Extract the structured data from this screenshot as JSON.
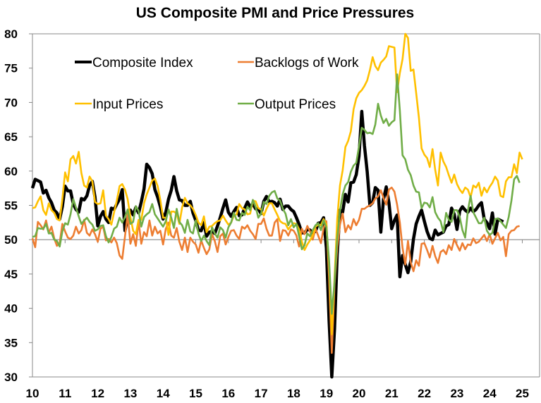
{
  "chart_data": {
    "type": "line",
    "title": "US Composite PMI and Price Pressures",
    "xlabel": "",
    "ylabel": "",
    "ylim": [
      30,
      80
    ],
    "yticks": [
      30,
      35,
      40,
      45,
      50,
      55,
      60,
      65,
      70,
      75,
      80
    ],
    "xtick_labels": [
      "10",
      "11",
      "12",
      "13",
      "14",
      "15",
      "16",
      "17",
      "18",
      "19",
      "20",
      "21",
      "22",
      "23",
      "24",
      "25"
    ],
    "x_start": "2010-01",
    "frequency": "monthly",
    "reference_line": 50,
    "grid": false,
    "legend": "top-left, inside plot, two columns",
    "series": [
      {
        "name": "Composite Index",
        "color": "#000000",
        "values": [
          57.5,
          58.8,
          58.6,
          58.4,
          56.8,
          57.2,
          56.1,
          55.4,
          54.3,
          53.9,
          53.0,
          54.8,
          57.8,
          57.1,
          57.1,
          55.2,
          54.4,
          54.0,
          56.0,
          55.8,
          56.4,
          57.9,
          58.5,
          56.2,
          52.0,
          53.4,
          54.1,
          53.0,
          52.5,
          54.6,
          54.4,
          55.2,
          55.9,
          57.3,
          51.3,
          53.2,
          54.3,
          53.6,
          54.7,
          53.9,
          55.5,
          57.4,
          61.0,
          60.5,
          59.6,
          57.3,
          56.2,
          54.8,
          53.0,
          54.0,
          55.9,
          57.2,
          59.2,
          57.1,
          55.8,
          55.7,
          55.0,
          55.0,
          55.6,
          53.9,
          52.8,
          51.4,
          51.3,
          52.5,
          50.5,
          51.1,
          51.2,
          50.9,
          52.0,
          53.2,
          54.6,
          55.8,
          54.0,
          53.4,
          54.1,
          54.7,
          53.5,
          53.6,
          54.6,
          55.5,
          54.8,
          55.2,
          54.5,
          54.5,
          53.8,
          55.6,
          56.3,
          55.5,
          55.6,
          55.4,
          54.9,
          55.9,
          54.4,
          54.9,
          54.9,
          54.4,
          54.1,
          53.2,
          52.2,
          51.0,
          51.0,
          51.5,
          51.4,
          51.0,
          51.2,
          52.4,
          52.5,
          53.2,
          48.8,
          38.1,
          27.0,
          37.0,
          47.9,
          54.3,
          54.0,
          56.6,
          55.5,
          58.3,
          58.4,
          59.5,
          62.2,
          68.7,
          63.7,
          59.9,
          55.0,
          55.4,
          57.6,
          57.2,
          51.1,
          55.9,
          57.7,
          55.4,
          51.6,
          52.8,
          53.6,
          44.6,
          47.7,
          46.4,
          45.2,
          46.8,
          50.1,
          52.3,
          53.4,
          54.3,
          52.7,
          51.2,
          50.2,
          50.0,
          51.4,
          50.7,
          50.9,
          51.1,
          52.0,
          52.2,
          54.6,
          53.7,
          51.5,
          54.2,
          54.8,
          54.3,
          54.0,
          54.6,
          54.1,
          54.4,
          55.0,
          55.4,
          53.0,
          52.5,
          51.6,
          53.9,
          50.8,
          53.0,
          52.8,
          52.6
        ]
      },
      {
        "name": "Backlogs of Work",
        "color": "#ED7D31",
        "values": [
          50.2,
          48.9,
          52.6,
          52.1,
          51.5,
          52.8,
          51.0,
          51.9,
          50.2,
          49.1,
          49.5,
          52.3,
          51.2,
          50.3,
          50.1,
          50.6,
          51.9,
          50.9,
          51.4,
          52.9,
          51.0,
          50.6,
          51.5,
          50.8,
          49.7,
          51.6,
          51.9,
          49.9,
          50.1,
          49.6,
          50.3,
          49.5,
          47.7,
          47.2,
          50.5,
          53.7,
          49.4,
          50.8,
          49.1,
          52.7,
          49.4,
          51.1,
          50.5,
          52.8,
          50.6,
          51.9,
          50.9,
          51.3,
          49.3,
          51.6,
          52.5,
          50.6,
          50.3,
          51.7,
          49.7,
          48.5,
          50.3,
          48.2,
          50.3,
          49.7,
          49.3,
          48.1,
          49.9,
          48.8,
          47.9,
          48.6,
          50.8,
          49.8,
          48.2,
          50.5,
          50.9,
          49.3,
          50.4,
          51.3,
          51.4,
          50.6,
          50.1,
          51.9,
          51.6,
          52.1,
          51.3,
          50.8,
          50.1,
          52.3,
          52.3,
          53.1,
          51.6,
          50.6,
          50.6,
          52.5,
          53.0,
          49.8,
          51.4,
          51.3,
          50.6,
          51.5,
          51.3,
          50.6,
          49.0,
          51.6,
          50.8,
          52.0,
          51.2,
          50.0,
          51.6,
          50.6,
          49.5,
          51.7,
          52.7,
          44.3,
          33.5,
          43.5,
          48.8,
          52.2,
          53.8,
          51.1,
          52.1,
          51.5,
          53.0,
          52.1,
          52.9,
          54.5,
          54.5,
          54.8,
          55.0,
          55.3,
          56.0,
          56.3,
          57.2,
          56.1,
          55.1,
          57.3,
          57.6,
          57.0,
          55.1,
          52.5,
          48.8,
          46.4,
          49.8,
          46.7,
          45.4,
          47.0,
          46.2,
          49.4,
          49.5,
          48.5,
          47.4,
          49.1,
          47.6,
          46.6,
          48.2,
          48.5,
          47.9,
          49.2,
          48.5,
          50.1,
          49.2,
          48.4,
          49.5,
          48.6,
          49.3,
          49.2,
          50.2,
          49.5,
          49.7,
          50.2,
          50.7,
          49.8,
          50.8,
          49.4,
          50.2,
          51.0,
          49.9,
          50.4,
          47.6,
          50.8,
          51.3,
          51.4,
          51.9,
          52.0
        ]
      },
      {
        "name": "Input Prices",
        "color": "#FFC000",
        "values": [
          54.6,
          54.7,
          55.6,
          56.3,
          54.3,
          53.6,
          55.3,
          54.3,
          53.9,
          53.0,
          52.8,
          55.9,
          59.8,
          58.5,
          61.7,
          62.2,
          61.1,
          62.8,
          59.7,
          57.9,
          57.6,
          59.2,
          58.5,
          55.5,
          55.2,
          55.3,
          57.2,
          53.5,
          53.0,
          52.2,
          54.0,
          55.7,
          57.8,
          58.1,
          57.3,
          55.9,
          53.3,
          51.3,
          50.8,
          52.9,
          52.9,
          55.3,
          56.6,
          57.6,
          58.6,
          58.9,
          57.8,
          55.8,
          53.2,
          53.2,
          50.7,
          54.1,
          54.1,
          53.8,
          52.3,
          54.7,
          56.1,
          55.3,
          55.0,
          54.5,
          53.6,
          52.5,
          52.1,
          53.4,
          51.1,
          51.9,
          52.0,
          52.4,
          52.7,
          52.8,
          53.5,
          52.8,
          52.2,
          52.5,
          53.5,
          53.7,
          55.2,
          54.6,
          54.4,
          53.7,
          53.8,
          55.7,
          55.6,
          54.6,
          54.4,
          53.5,
          54.5,
          55.3,
          55.3,
          54.4,
          53.6,
          52.7,
          52.4,
          52.3,
          51.5,
          52.0,
          52.4,
          52.3,
          51.5,
          49.7,
          48.5,
          49.3,
          49.9,
          50.6,
          51.9,
          52.2,
          52.1,
          53.0,
          52.2,
          46.2,
          36.2,
          44.5,
          53.0,
          57.9,
          60.1,
          63.5,
          64.4,
          65.8,
          69.0,
          70.6,
          71.4,
          71.8,
          72.4,
          73.2,
          74.7,
          76.6,
          75.3,
          74.7,
          75.8,
          76.2,
          76.7,
          78.2,
          78.1,
          78.0,
          71.5,
          74.3,
          76.3,
          80.4,
          79.4,
          74.6,
          74.8,
          71.4,
          67.8,
          63.3,
          62.4,
          61.9,
          60.6,
          63.2,
          60.2,
          57.9,
          62.7,
          61.4,
          60.6,
          59.4,
          58.3,
          59.5,
          58.1,
          57.3,
          56.8,
          57.6,
          57.3,
          56.2,
          57.9,
          57.6,
          58.3,
          56.4,
          57.6,
          56.9,
          57.7,
          58.3,
          59.2,
          58.6,
          56.4,
          56.2,
          58.5,
          59.1,
          59.1,
          61.0,
          59.7,
          62.7,
          61.7
        ]
      },
      {
        "name": "Output Prices",
        "color": "#70AD47",
        "values": [
          50.4,
          50.5,
          51.7,
          51.6,
          51.6,
          52.3,
          50.9,
          51.0,
          50.0,
          49.8,
          49.0,
          51.2,
          52.4,
          52.2,
          53.7,
          55.9,
          54.7,
          53.4,
          52.3,
          52.8,
          53.2,
          52.6,
          52.2,
          51.3,
          51.5,
          52.0,
          52.1,
          50.5,
          49.6,
          50.4,
          51.6,
          51.9,
          53.2,
          52.5,
          53.3,
          54.4,
          52.3,
          52.6,
          54.9,
          54.2,
          51.9,
          53.3,
          53.7,
          54.0,
          55.2,
          53.7,
          53.1,
          52.5,
          51.9,
          52.7,
          54.4,
          53.2,
          51.7,
          54.5,
          52.6,
          52.1,
          51.0,
          52.9,
          51.2,
          50.9,
          52.8,
          50.9,
          49.8,
          50.6,
          49.8,
          49.2,
          51.8,
          50.9,
          50.3,
          51.8,
          51.4,
          50.3,
          51.8,
          52.5,
          53.9,
          52.9,
          52.8,
          53.9,
          53.6,
          54.8,
          54.3,
          55.8,
          54.8,
          53.2,
          53.8,
          55.5,
          55.2,
          56.4,
          56.9,
          57.1,
          56.0,
          55.7,
          54.5,
          53.8,
          52.1,
          53.0,
          51.8,
          52.3,
          50.5,
          48.6,
          49.2,
          50.9,
          50.5,
          51.4,
          52.1,
          52.4,
          51.4,
          52.8,
          51.8,
          46.9,
          39.2,
          43.8,
          50.2,
          54.2,
          56.6,
          57.9,
          58.4,
          59.9,
          60.8,
          61.2,
          63.6,
          66.3,
          66.0,
          65.5,
          65.6,
          65.4,
          66.8,
          69.8,
          68.1,
          67.0,
          67.6,
          66.6,
          67.1,
          67.4,
          74.1,
          68.8,
          62.3,
          61.7,
          60.2,
          59.4,
          57.9,
          57.0,
          56.9,
          54.6,
          55.4,
          55.3,
          54.7,
          56.2,
          54.0,
          53.2,
          52.7,
          51.1,
          53.9,
          52.9,
          52.6,
          54.3,
          54.3,
          53.3,
          51.4,
          50.3,
          54.2,
          56.4,
          54.0,
          53.2,
          52.4,
          52.4,
          53.2,
          51.3,
          50.7,
          51.0,
          53.0,
          53.1,
          52.7,
          52.2,
          51.7,
          53.3,
          55.7,
          58.8,
          59.3,
          58.3
        ]
      }
    ]
  }
}
